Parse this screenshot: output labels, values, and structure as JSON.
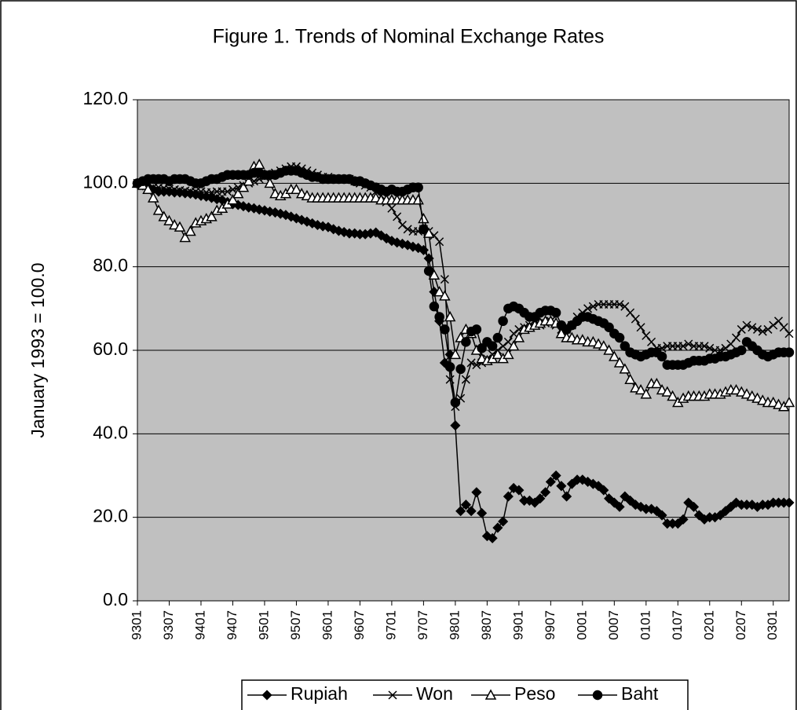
{
  "chart_data": {
    "type": "line",
    "title": "Figure 1. Trends of Nominal Exchange Rates",
    "y_label": "January 1993 = 100.0",
    "categories": [
      "9301",
      null,
      null,
      null,
      null,
      null,
      "9307",
      null,
      null,
      null,
      null,
      null,
      "9401",
      null,
      null,
      null,
      null,
      null,
      "9407",
      null,
      null,
      null,
      null,
      null,
      "9501",
      null,
      null,
      null,
      null,
      null,
      "9507",
      null,
      null,
      null,
      null,
      null,
      "9601",
      null,
      null,
      null,
      null,
      null,
      "9607",
      null,
      null,
      null,
      null,
      null,
      "9701",
      null,
      null,
      null,
      null,
      null,
      "9707",
      null,
      null,
      null,
      null,
      null,
      "9801",
      null,
      null,
      null,
      null,
      null,
      "9807",
      null,
      null,
      null,
      null,
      null,
      "9901",
      null,
      null,
      null,
      null,
      null,
      "9907",
      null,
      null,
      null,
      null,
      null,
      "0001",
      null,
      null,
      null,
      null,
      null,
      "0007",
      null,
      null,
      null,
      null,
      null,
      "0101",
      null,
      null,
      null,
      null,
      null,
      "0107",
      null,
      null,
      null,
      null,
      null,
      "0201",
      null,
      null,
      null,
      null,
      null,
      "0207",
      null,
      null,
      null,
      null,
      null,
      "0301",
      null,
      null,
      null
    ],
    "ylim": [
      0,
      120
    ],
    "yticks": [
      {
        "value": 0,
        "label": "0.0"
      },
      {
        "value": 20,
        "label": "20.0"
      },
      {
        "value": 40,
        "label": "40.0"
      },
      {
        "value": 60,
        "label": "60.0"
      },
      {
        "value": 80,
        "label": "80.0"
      },
      {
        "value": 100,
        "label": "100.0"
      },
      {
        "value": 120,
        "label": "120.0"
      }
    ],
    "grid": true,
    "legend": "bottom",
    "series": [
      {
        "name": "Rupiah",
        "color": "#000000",
        "marker": "diamond",
        "values": [
          100,
          99.5,
          99,
          98.5,
          98,
          98,
          98,
          97.8,
          97.8,
          97.6,
          97.5,
          97.3,
          97,
          96.8,
          96.5,
          96.2,
          96,
          95.5,
          95,
          94.8,
          94.5,
          94.2,
          94,
          93.7,
          93.5,
          93.2,
          93,
          92.7,
          92.4,
          92,
          91.6,
          91.2,
          90.8,
          90.4,
          90,
          89.7,
          89.5,
          89,
          88.6,
          88.3,
          88,
          88,
          87.8,
          87.8,
          88,
          88.2,
          87.5,
          86.8,
          86.2,
          85.8,
          85.5,
          85.2,
          84.8,
          84.5,
          84,
          82,
          74,
          67,
          57,
          59,
          42,
          21.5,
          23,
          21.5,
          26,
          21,
          15.5,
          15,
          17.5,
          19,
          25,
          27,
          26.5,
          24,
          24,
          23.5,
          24.5,
          26,
          28.5,
          30,
          27.5,
          25,
          28,
          29,
          29,
          28.5,
          28,
          27.5,
          26.5,
          24.5,
          23.5,
          22.5,
          25,
          24,
          23,
          22.5,
          22,
          22,
          21.5,
          20.5,
          18.5,
          18.5,
          18.5,
          19.5,
          23.5,
          22.5,
          20.5,
          19.5,
          20,
          20,
          20.5,
          21.5,
          22.5,
          23.5,
          23,
          23,
          23,
          22.5,
          23,
          23,
          23.5,
          23.5,
          23.5,
          23.5
        ]
      },
      {
        "name": "Won",
        "color": "#000000",
        "marker": "cross",
        "values": [
          100,
          99.5,
          99.5,
          99,
          99,
          98.8,
          98.6,
          98.5,
          98.3,
          98.2,
          98,
          98,
          98,
          97.8,
          97.8,
          98,
          98,
          98,
          98.5,
          99,
          99.5,
          100,
          100.5,
          101,
          101.5,
          102,
          102.5,
          103,
          103.5,
          104,
          104,
          103.5,
          103,
          102.5,
          102,
          101.5,
          101.5,
          101,
          101,
          101,
          101,
          100.5,
          100,
          99.5,
          99,
          98,
          97,
          95.5,
          94,
          92,
          90,
          89,
          88.5,
          88.5,
          89,
          88.5,
          87.5,
          86,
          77,
          53,
          46.5,
          48.5,
          53,
          57,
          56.5,
          57,
          58,
          59,
          60,
          61,
          62,
          64,
          65,
          65.5,
          66,
          66.5,
          66,
          66.5,
          67,
          66,
          65,
          65,
          66,
          68,
          69,
          70,
          70.5,
          71,
          71,
          71,
          71,
          71,
          70.5,
          69,
          67.5,
          65.5,
          63.5,
          62,
          60.5,
          60.5,
          61,
          61,
          61,
          61,
          61.5,
          61,
          61,
          61,
          60.5,
          60,
          60,
          60.5,
          61.5,
          63,
          65,
          66,
          65.5,
          65,
          64.5,
          65,
          66,
          67,
          65.5,
          64
        ]
      },
      {
        "name": "Peso",
        "color": "#000000",
        "marker": "triangle",
        "values": [
          100,
          99.5,
          98.5,
          96.5,
          93.5,
          92,
          91,
          90,
          89.5,
          87,
          88.5,
          90.5,
          91,
          91.5,
          92,
          93.5,
          94,
          95,
          96,
          97.5,
          99,
          100.5,
          104,
          104.5,
          102,
          100,
          97.5,
          97,
          97.5,
          98.5,
          98.5,
          97.5,
          97,
          96.5,
          96.5,
          96.5,
          96.5,
          96.5,
          96.5,
          96.5,
          96.5,
          96.5,
          96.5,
          96.5,
          96.5,
          96.5,
          96,
          96,
          96,
          96,
          96,
          96,
          96,
          96,
          91.5,
          88,
          78,
          74,
          73,
          68,
          59,
          63,
          65,
          64,
          60,
          58,
          57.5,
          58,
          59,
          58,
          59,
          61,
          63,
          65,
          65.5,
          66,
          66.5,
          67,
          67,
          66.5,
          64,
          63,
          63,
          62.5,
          62.5,
          62,
          62,
          61.5,
          61,
          60,
          58.5,
          57,
          55.5,
          53,
          51,
          50.5,
          49.5,
          52,
          52,
          50.5,
          50,
          49,
          47.5,
          48.5,
          49,
          49,
          49,
          49,
          49.5,
          49.5,
          49.5,
          50,
          50.5,
          50.5,
          50,
          49.5,
          49,
          48.5,
          48,
          47.5,
          47.5,
          47,
          46.5,
          47.5
        ]
      },
      {
        "name": "Baht",
        "color": "#000000",
        "marker": "circle",
        "values": [
          100,
          100.5,
          101,
          101,
          101,
          101,
          100.5,
          101,
          101,
          101,
          100.5,
          100,
          100,
          100.5,
          101,
          101,
          101.5,
          102,
          102,
          102,
          102,
          102,
          102.5,
          102.5,
          102,
          102,
          102,
          102.5,
          103,
          103,
          103,
          102.5,
          102,
          101.5,
          101.5,
          101,
          101,
          101,
          101,
          101,
          101,
          100.5,
          100.5,
          100,
          99.5,
          99,
          98.5,
          98,
          98.5,
          98,
          98,
          98.5,
          99,
          99,
          89,
          79,
          70.5,
          68,
          65,
          56,
          47.5,
          55.5,
          62,
          64.5,
          65,
          60.5,
          62,
          61,
          63,
          67,
          70,
          70.5,
          70,
          69,
          68,
          68,
          69,
          69.5,
          69.5,
          69,
          66,
          65,
          66,
          67,
          68,
          68,
          67.5,
          67,
          66.5,
          65.5,
          64,
          63,
          61,
          59.5,
          59,
          58.5,
          59,
          59.5,
          59.5,
          58.5,
          56.5,
          56.5,
          56.5,
          56.5,
          57,
          57.5,
          57.5,
          57.5,
          58,
          58,
          58.5,
          58.5,
          59,
          59.5,
          60,
          62,
          61,
          60,
          59,
          58.5,
          59,
          59.5,
          59.5,
          59.5
        ]
      }
    ]
  }
}
